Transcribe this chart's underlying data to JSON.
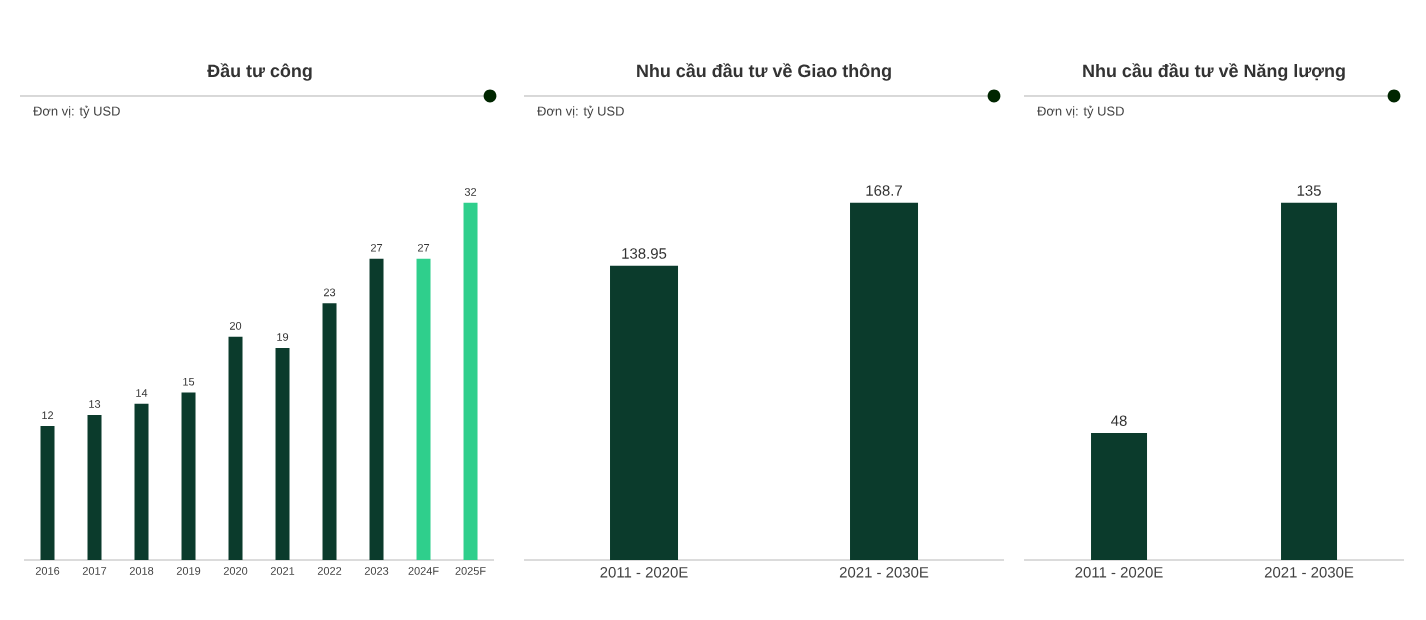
{
  "chart_data": [
    {
      "type": "bar",
      "title": "Đầu tư công",
      "subtitle": "Đơn vị: tỷ USD",
      "categories": [
        "2016",
        "2017",
        "2018",
        "2019",
        "2020",
        "2021",
        "2022",
        "2023",
        "2024F",
        "2025F"
      ],
      "values": [
        12,
        13,
        14,
        15,
        20,
        19,
        23,
        27,
        27,
        32
      ],
      "colors": [
        "#0b3b2c",
        "#0b3b2c",
        "#0b3b2c",
        "#0b3b2c",
        "#0b3b2c",
        "#0b3b2c",
        "#0b3b2c",
        "#0b3b2c",
        "#2fcf8c",
        "#2fcf8c"
      ],
      "data_labels": true
    },
    {
      "type": "bar",
      "title": "Nhu cầu đầu tư về Giao thông",
      "subtitle": "Đơn vị: tỷ USD",
      "categories": [
        "2011 - 2020E",
        "2021 - 2030E"
      ],
      "values": [
        138.95,
        168.7
      ],
      "colors": [
        "#0b3b2c",
        "#0b3b2c"
      ],
      "data_labels": true
    },
    {
      "type": "bar",
      "title": "Nhu cầu đầu tư về Năng lượng",
      "subtitle": "Đơn vị: tỷ USD",
      "categories": [
        "2011 - 2020E",
        "2021 - 2030E"
      ],
      "values": [
        48,
        135
      ],
      "colors": [
        "#0b3b2c",
        "#0b3b2c"
      ],
      "data_labels": true
    }
  ]
}
